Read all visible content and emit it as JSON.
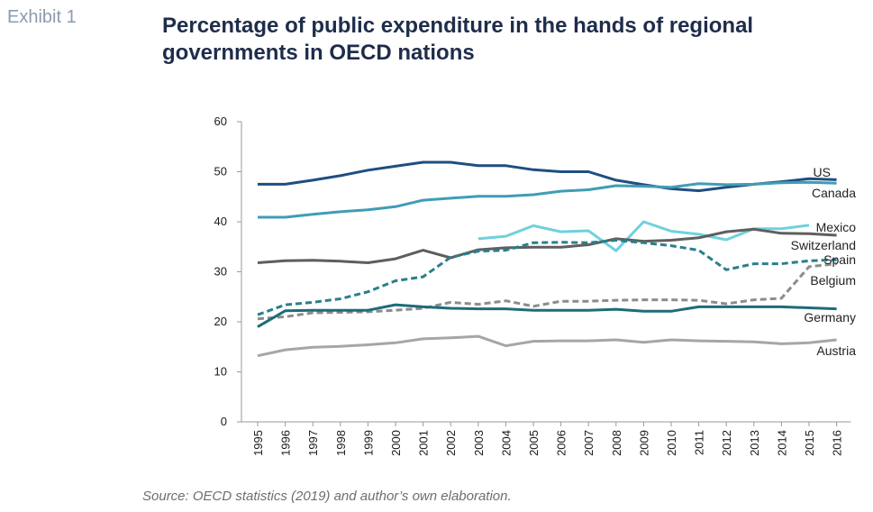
{
  "exhibit_label": "Exhibit 1",
  "chart_data": {
    "type": "line",
    "title": "Percentage of public expenditure in the hands of regional governments in OECD nations",
    "xlabel": "",
    "ylabel": "",
    "ylim": [
      0,
      60
    ],
    "yticks": [
      "0",
      "10",
      "20",
      "30",
      "40",
      "50",
      "60"
    ],
    "x": [
      "1995",
      "1996",
      "1997",
      "1998",
      "1999",
      "2000",
      "2001",
      "2002",
      "2003",
      "2004",
      "2005",
      "2006",
      "2007",
      "2008",
      "2009",
      "2010",
      "2011",
      "2012",
      "2013",
      "2014",
      "2015",
      "2016"
    ],
    "grid": false,
    "legend": "direct labels at line ends",
    "series": [
      {
        "name": "US",
        "color": "#1f4e80",
        "dash": "solid",
        "values": [
          47.5,
          47.5,
          48.3,
          49.2,
          50.3,
          51.1,
          51.9,
          51.9,
          51.2,
          51.2,
          50.4,
          50.0,
          50.0,
          48.3,
          47.4,
          46.6,
          46.2,
          46.9,
          47.5,
          48.0,
          48.6,
          48.4
        ]
      },
      {
        "name": "Canada",
        "color": "#3f9db5",
        "dash": "solid",
        "values": [
          40.9,
          40.9,
          41.5,
          42.0,
          42.4,
          43.0,
          44.3,
          44.7,
          45.1,
          45.1,
          45.4,
          46.1,
          46.4,
          47.2,
          47.1,
          46.9,
          47.6,
          47.4,
          47.5,
          47.8,
          47.9,
          47.7
        ]
      },
      {
        "name": "Mexico",
        "color": "#6fd1de",
        "dash": "solid",
        "values": [
          null,
          null,
          null,
          null,
          null,
          null,
          null,
          null,
          36.6,
          37.1,
          39.2,
          38.0,
          38.2,
          34.2,
          40.0,
          38.1,
          37.5,
          36.4,
          38.6,
          38.6,
          39.3,
          null
        ]
      },
      {
        "name": "Switzerland",
        "color": "#5e5e5e",
        "dash": "solid",
        "values": [
          31.8,
          32.2,
          32.3,
          32.1,
          31.8,
          32.6,
          34.3,
          32.8,
          34.4,
          34.8,
          34.9,
          34.9,
          35.4,
          36.6,
          36.1,
          36.3,
          36.8,
          38.0,
          38.5,
          37.7,
          37.6,
          37.3
        ]
      },
      {
        "name": "Spain",
        "color": "#2a7f8c",
        "dash": "dash",
        "values": [
          21.4,
          23.4,
          23.9,
          24.6,
          26.0,
          28.2,
          29.0,
          32.9,
          34.1,
          34.3,
          35.8,
          35.9,
          35.8,
          36.3,
          35.8,
          35.2,
          34.3,
          30.4,
          31.6,
          31.6,
          32.2,
          32.4
        ]
      },
      {
        "name": "Belgium",
        "color": "#8c8c8c",
        "dash": "dash",
        "values": [
          20.6,
          21.0,
          21.8,
          21.9,
          22.0,
          22.3,
          22.7,
          23.9,
          23.5,
          24.2,
          23.1,
          24.1,
          24.1,
          24.3,
          24.4,
          24.4,
          24.3,
          23.6,
          24.4,
          24.7,
          31.0,
          31.6
        ]
      },
      {
        "name": "Germany",
        "color": "#1d6c79",
        "dash": "solid",
        "values": [
          19.0,
          22.2,
          22.3,
          22.3,
          22.3,
          23.4,
          23.0,
          22.7,
          22.6,
          22.6,
          22.3,
          22.3,
          22.3,
          22.5,
          22.1,
          22.1,
          23.0,
          23.0,
          23.0,
          23.0,
          22.8,
          22.6
        ]
      },
      {
        "name": "Austria",
        "color": "#a6a6a6",
        "dash": "solid",
        "values": [
          13.2,
          14.4,
          14.9,
          15.1,
          15.4,
          15.8,
          16.6,
          16.8,
          17.1,
          15.2,
          16.1,
          16.2,
          16.2,
          16.4,
          15.9,
          16.4,
          16.2,
          16.1,
          16.0,
          15.6,
          15.8,
          16.4
        ]
      }
    ]
  },
  "source_note": "Source: OECD statistics (2019) and author’s own elaboration."
}
